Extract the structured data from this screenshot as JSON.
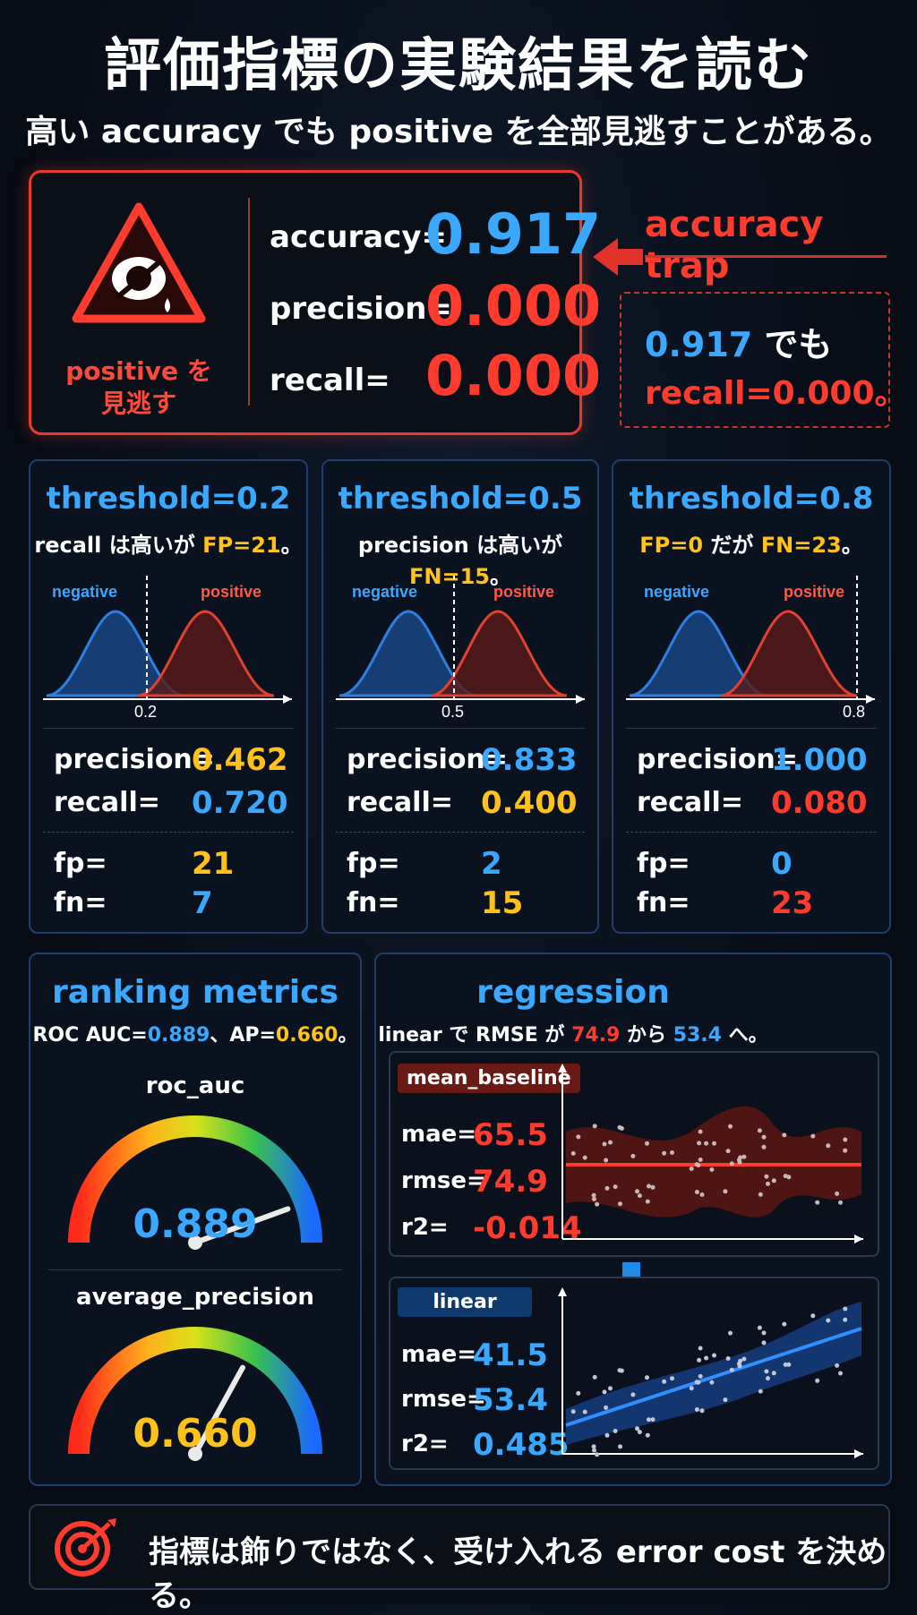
{
  "header": {
    "title": "評価指標の実験結果を読む",
    "subtitle_pre": "高い accuracy でも positive を全部見逃すことがある。"
  },
  "trap": {
    "icon_label_1": "positive を",
    "icon_label_2": "見逃す",
    "accuracy_label": "accuracy=",
    "accuracy_value": "0.917",
    "precision_label": "precision=",
    "precision_value": "0.000",
    "recall_label": "recall=",
    "recall_value": "0.000",
    "callout_title": "accuracy trap",
    "callout_line1_value": "0.917",
    "callout_line1_text": " でも",
    "callout_line2": "recall=0.000。"
  },
  "thresholds": [
    {
      "title": "threshold=0.2",
      "sub_a": "recall は高いが ",
      "sub_b": "FP=21",
      "sub_c": "。",
      "neg_label": "negative",
      "pos_label": "positive",
      "tick": "0.2",
      "precision_label": "precision=",
      "precision": "0.462",
      "recall_label": "recall=",
      "recall": "0.720",
      "fp_label": "fp=",
      "fp": "21",
      "fn_label": "fn=",
      "fn": "7"
    },
    {
      "title": "threshold=0.5",
      "sub_a": "precision は高いが ",
      "sub_b": "FN=15",
      "sub_c": "。",
      "neg_label": "negative",
      "pos_label": "positive",
      "tick": "0.5",
      "precision_label": "precision=",
      "precision": "0.833",
      "recall_label": "recall=",
      "recall": "0.400",
      "fp_label": "fp=",
      "fp": "2",
      "fn_label": "fn=",
      "fn": "15"
    },
    {
      "title": "threshold=0.8",
      "sub_a": "FP=0",
      "sub_b": " だが ",
      "sub_c": "FN=23",
      "sub_d": "。",
      "neg_label": "negative",
      "pos_label": "positive",
      "tick": "0.8",
      "precision_label": "precision=",
      "precision": "1.000",
      "recall_label": "recall=",
      "recall": "0.080",
      "fp_label": "fp=",
      "fp": "0",
      "fn_label": "fn=",
      "fn": "23"
    }
  ],
  "ranking": {
    "title": "ranking metrics",
    "sub_a": "ROC AUC=",
    "sub_b": "0.889",
    "sub_c": "、AP=",
    "sub_d": "0.660",
    "sub_e": "。",
    "gauge1_title": "roc_auc",
    "gauge1_value": "0.889",
    "gauge1_level": 0.889,
    "gauge2_title": "average_precision",
    "gauge2_value": "0.660",
    "gauge2_level": 0.66
  },
  "regression": {
    "title": "regression",
    "sub_a": "linear で RMSE が ",
    "sub_b": "74.9",
    "sub_c": " から ",
    "sub_d": "53.4",
    "sub_e": " へ。",
    "baseline": {
      "badge": "mean_baseline",
      "mae_label": "mae=",
      "mae": "65.5",
      "rmse_label": "rmse=",
      "rmse": "74.9",
      "r2_label": "r2=",
      "r2": "-0.014"
    },
    "linear": {
      "badge": "linear",
      "mae_label": "mae=",
      "mae": "41.5",
      "rmse_label": "rmse=",
      "rmse": "53.4",
      "r2_label": "r2=",
      "r2": "0.485"
    }
  },
  "footer": {
    "text": "指標は飾りではなく、受け入れる error cost を決める。"
  },
  "colors": {
    "blue": "#3aa8ff",
    "red": "#ff3b2e",
    "yellow": "#ffc21a"
  }
}
